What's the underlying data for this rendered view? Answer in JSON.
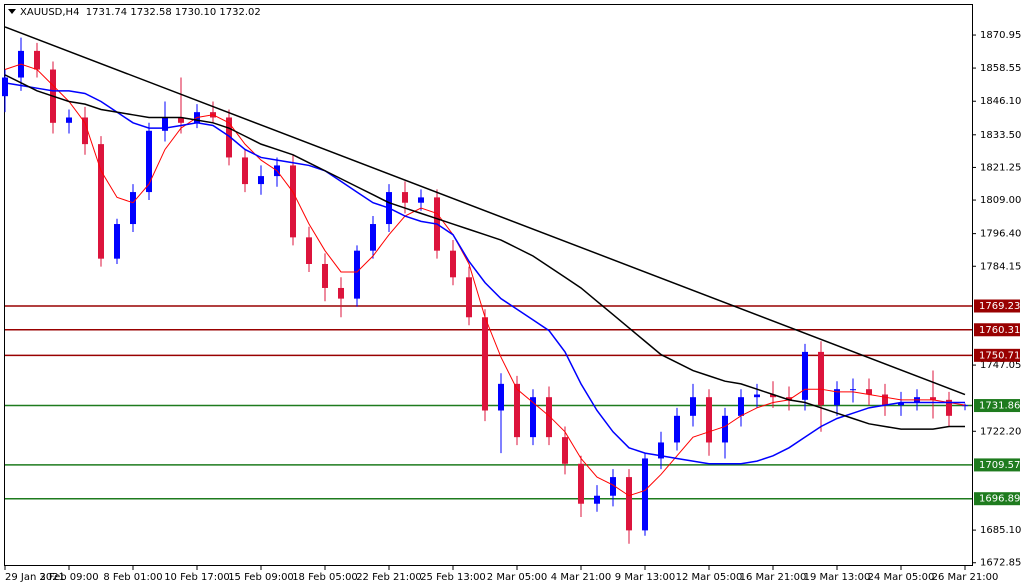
{
  "chart_data": {
    "type": "candlestick",
    "header": "XAUUSD,H4  1731.74 1732.58 1730.10 1732.02",
    "categories": [
      "29 Jan 2021",
      null,
      null,
      null,
      "3 Feb 09:00",
      null,
      null,
      null,
      "8 Feb 01:00",
      null,
      null,
      null,
      "10 Feb 17:00",
      null,
      null,
      null,
      "15 Feb 09:00",
      null,
      null,
      null,
      "18 Feb 05:00",
      null,
      null,
      null,
      "22 Feb 21:00",
      null,
      null,
      null,
      "25 Feb 13:00",
      null,
      null,
      null,
      "2 Mar 05:00",
      null,
      null,
      null,
      "4 Mar 21:00",
      null,
      null,
      null,
      "9 Mar 13:00",
      null,
      null,
      null,
      "12 Mar 05:00",
      null,
      null,
      null,
      "16 Mar 21:00",
      null,
      null,
      null,
      "19 Mar 13:00",
      null,
      null,
      null,
      "24 Mar 05:00",
      null,
      null,
      null,
      "26 Mar 21:00"
    ],
    "bull_color": "#0000ff",
    "bear_color": "#dc143c",
    "open": [
      1848,
      1855,
      1865,
      1858,
      1838,
      1840,
      1830,
      1787,
      1800,
      1812,
      1835,
      1840,
      1838,
      1842,
      1840,
      1825,
      1815,
      1818,
      1822,
      1795,
      1785,
      1776,
      1772,
      1790,
      1800,
      1812,
      1808,
      1810,
      1790,
      1780,
      1765,
      1730,
      1740,
      1720,
      1735,
      1720,
      1710,
      1695,
      1698,
      1705,
      1685,
      1712,
      1718,
      1728,
      1735,
      1718,
      1728,
      1735,
      1736,
      1735,
      1734,
      1752,
      1732,
      1738,
      1738,
      1736,
      1732,
      1733,
      1735,
      1734,
      1731.74
    ],
    "high": [
      1858,
      1870,
      1868,
      1861,
      1843,
      1844,
      1833,
      1802,
      1815,
      1838,
      1846,
      1855,
      1845,
      1846,
      1843,
      1828,
      1822,
      1825,
      1826,
      1799,
      1789,
      1780,
      1792,
      1803,
      1815,
      1816,
      1813,
      1813,
      1794,
      1784,
      1768,
      1744,
      1743,
      1738,
      1739,
      1724,
      1713,
      1702,
      1708,
      1708,
      1714,
      1722,
      1731,
      1740,
      1738,
      1731,
      1738,
      1740,
      1741,
      1739,
      1755,
      1756,
      1741,
      1742,
      1742,
      1740,
      1737,
      1738,
      1745,
      1737,
      1732.58
    ],
    "low": [
      1842,
      1850,
      1855,
      1834,
      1834,
      1826,
      1784,
      1785,
      1797,
      1809,
      1831,
      1834,
      1836,
      1838,
      1822,
      1812,
      1811,
      1814,
      1792,
      1782,
      1771,
      1765,
      1769,
      1787,
      1797,
      1804,
      1805,
      1787,
      1777,
      1762,
      1726,
      1714,
      1717,
      1717,
      1717,
      1706,
      1690,
      1692,
      1694,
      1680,
      1683,
      1708,
      1715,
      1724,
      1713,
      1712,
      1724,
      1731,
      1731,
      1730,
      1730,
      1722,
      1728,
      1733,
      1732,
      1728,
      1728,
      1730,
      1727,
      1724,
      1730.1
    ],
    "close": [
      1855,
      1865,
      1858,
      1838,
      1840,
      1830,
      1787,
      1800,
      1812,
      1835,
      1840,
      1838,
      1842,
      1840,
      1825,
      1815,
      1818,
      1822,
      1795,
      1785,
      1776,
      1772,
      1790,
      1800,
      1812,
      1808,
      1810,
      1790,
      1780,
      1765,
      1730,
      1740,
      1720,
      1735,
      1720,
      1710,
      1695,
      1698,
      1705,
      1685,
      1712,
      1718,
      1728,
      1735,
      1718,
      1728,
      1735,
      1736,
      1735,
      1734,
      1752,
      1732,
      1738,
      1738,
      1736,
      1732,
      1733,
      1735,
      1734,
      1728,
      1732.02
    ],
    "lines": [
      {
        "color": "#ff0000",
        "width": 1,
        "values": [
          1858,
          1860,
          1858,
          1852,
          1846,
          1838,
          1820,
          1810,
          1808,
          1815,
          1828,
          1836,
          1840,
          1841,
          1838,
          1830,
          1824,
          1820,
          1812,
          1800,
          1790,
          1782,
          1782,
          1788,
          1796,
          1803,
          1806,
          1804,
          1796,
          1785,
          1765,
          1750,
          1738,
          1733,
          1728,
          1722,
          1712,
          1705,
          1702,
          1698,
          1700,
          1706,
          1713,
          1720,
          1722,
          1724,
          1728,
          1731,
          1733,
          1734,
          1738,
          1738,
          1737,
          1737,
          1736,
          1735,
          1734,
          1734,
          1734,
          1733,
          1732
        ]
      },
      {
        "color": "#0000ff",
        "width": 1.5,
        "values": [
          1853,
          1852,
          1851,
          1850,
          1850,
          1849,
          1846,
          1842,
          1838,
          1836,
          1836,
          1837,
          1838,
          1837,
          1833,
          1828,
          1825,
          1824,
          1823,
          1822,
          1820,
          1816,
          1812,
          1808,
          1806,
          1803,
          1801,
          1800,
          1796,
          1786,
          1778,
          1772,
          1768,
          1764,
          1760,
          1752,
          1740,
          1730,
          1722,
          1716,
          1714,
          1713,
          1712,
          1711,
          1710,
          1710,
          1710,
          1711,
          1713,
          1716,
          1720,
          1724,
          1727,
          1729,
          1731,
          1732,
          1733,
          1733,
          1733,
          1733,
          1733
        ]
      },
      {
        "color": "#000000",
        "width": 1.5,
        "values": [
          1856,
          1853,
          1850,
          1848,
          1846,
          1845,
          1843,
          1842,
          1841,
          1840,
          1840,
          1840,
          1839,
          1838,
          1836,
          1833,
          1830,
          1828,
          1826,
          1823,
          1820,
          1817,
          1814,
          1811,
          1808,
          1806,
          1804,
          1802,
          1800,
          1798,
          1796,
          1794,
          1791,
          1788,
          1784,
          1780,
          1776,
          1771,
          1766,
          1761,
          1756,
          1751,
          1748,
          1745,
          1743,
          1741,
          1740,
          1738,
          1736,
          1734,
          1733,
          1731,
          1729,
          1727,
          1725,
          1724,
          1723,
          1723,
          1723,
          1724,
          1724
        ]
      }
    ],
    "trendline": {
      "x": [
        0,
        60
      ],
      "values": [
        1874,
        1736
      ],
      "color": "#000000"
    },
    "levels": [
      {
        "value": 1769.23,
        "color": "#990000"
      },
      {
        "value": 1760.31,
        "color": "#990000"
      },
      {
        "value": 1750.71,
        "color": "#990000"
      },
      {
        "value": 1731.86,
        "color": "#1e7b1e"
      },
      {
        "value": 1709.57,
        "color": "#1e7b1e"
      },
      {
        "value": 1696.89,
        "color": "#1e7b1e"
      }
    ],
    "ylim": [
      1672.0,
      1881.1
    ],
    "yticks": [
      1870.95,
      1858.55,
      {
        "value": 1846.1,
        "label": "1846.10"
      },
      {
        "value": 1833.5,
        "label": "1833.50"
      },
      1821.25,
      {
        "value": 1809,
        "label": "1809.00"
      },
      {
        "value": 1796.4,
        "label": "1796.40"
      },
      1784.15,
      1747.05,
      {
        "value": 1722.2,
        "label": "1722.20"
      },
      {
        "value": 1685.1,
        "label": "1685.10"
      },
      1672.85
    ]
  }
}
